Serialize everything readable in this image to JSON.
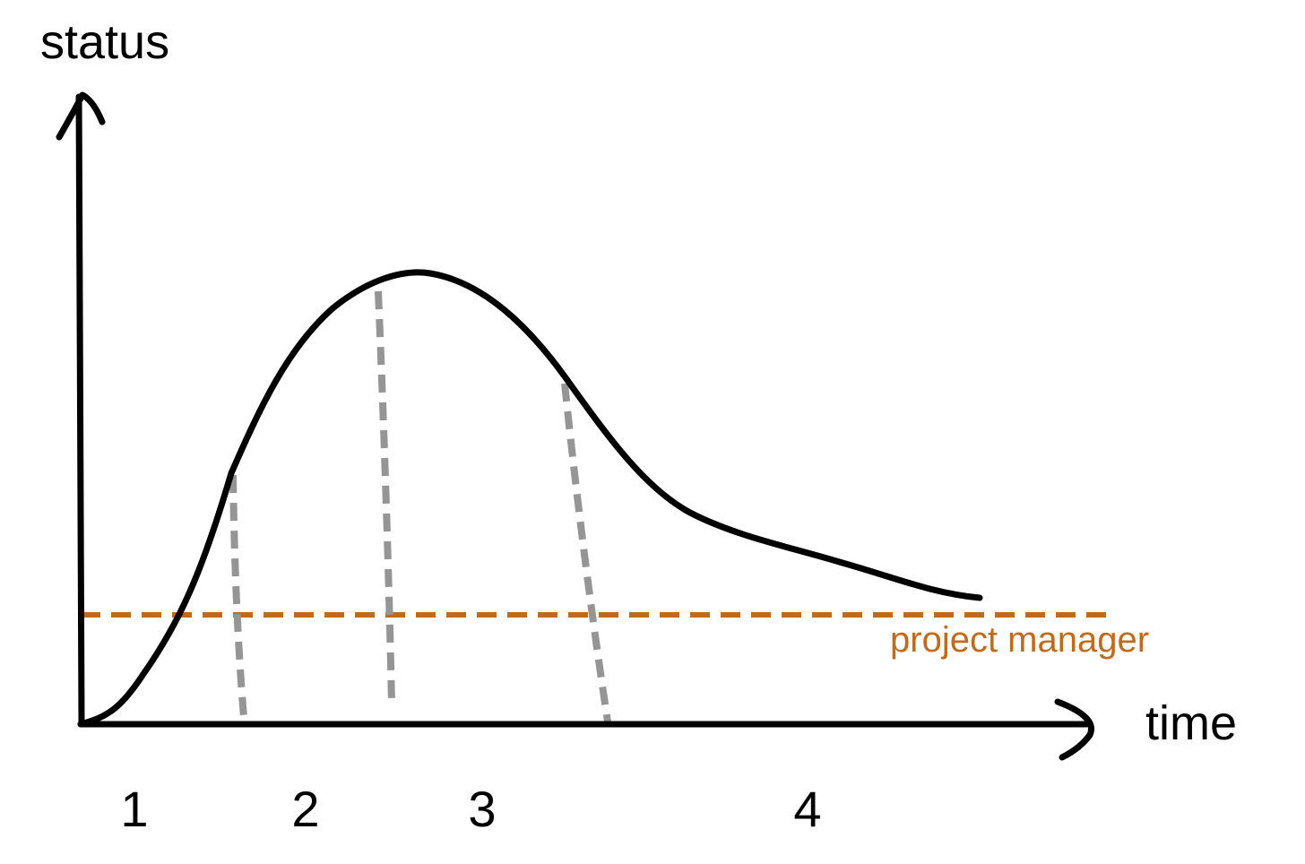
{
  "axes": {
    "y_label": "status",
    "x_label": "time"
  },
  "reference_line": {
    "label": "project manager"
  },
  "phases": [
    "1",
    "2",
    "3",
    "4"
  ]
}
